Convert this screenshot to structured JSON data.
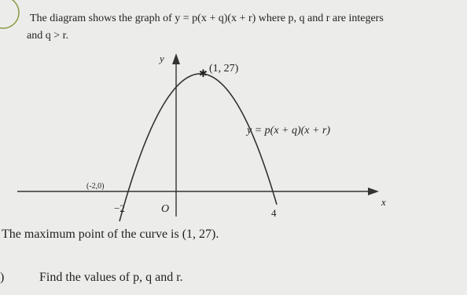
{
  "problem": {
    "intro_line_1": "The diagram shows the graph of y = p(x + q)(x + r) where p, q and r are integers",
    "intro_line_2": "and q > r.",
    "diagram": {
      "y_axis_label": "y",
      "x_axis_label": "x",
      "origin_label": "O",
      "root_left_label": "−2",
      "root_right_label": "4",
      "maximum_label": "(1, 27)",
      "curve_label": "y = p(x + q)(x + r)",
      "handwritten_note": "(-2,0)"
    },
    "statement": "The maximum point of the curve is (1, 27).",
    "part_label": ")",
    "question": "Find the values of p, q and r."
  }
}
